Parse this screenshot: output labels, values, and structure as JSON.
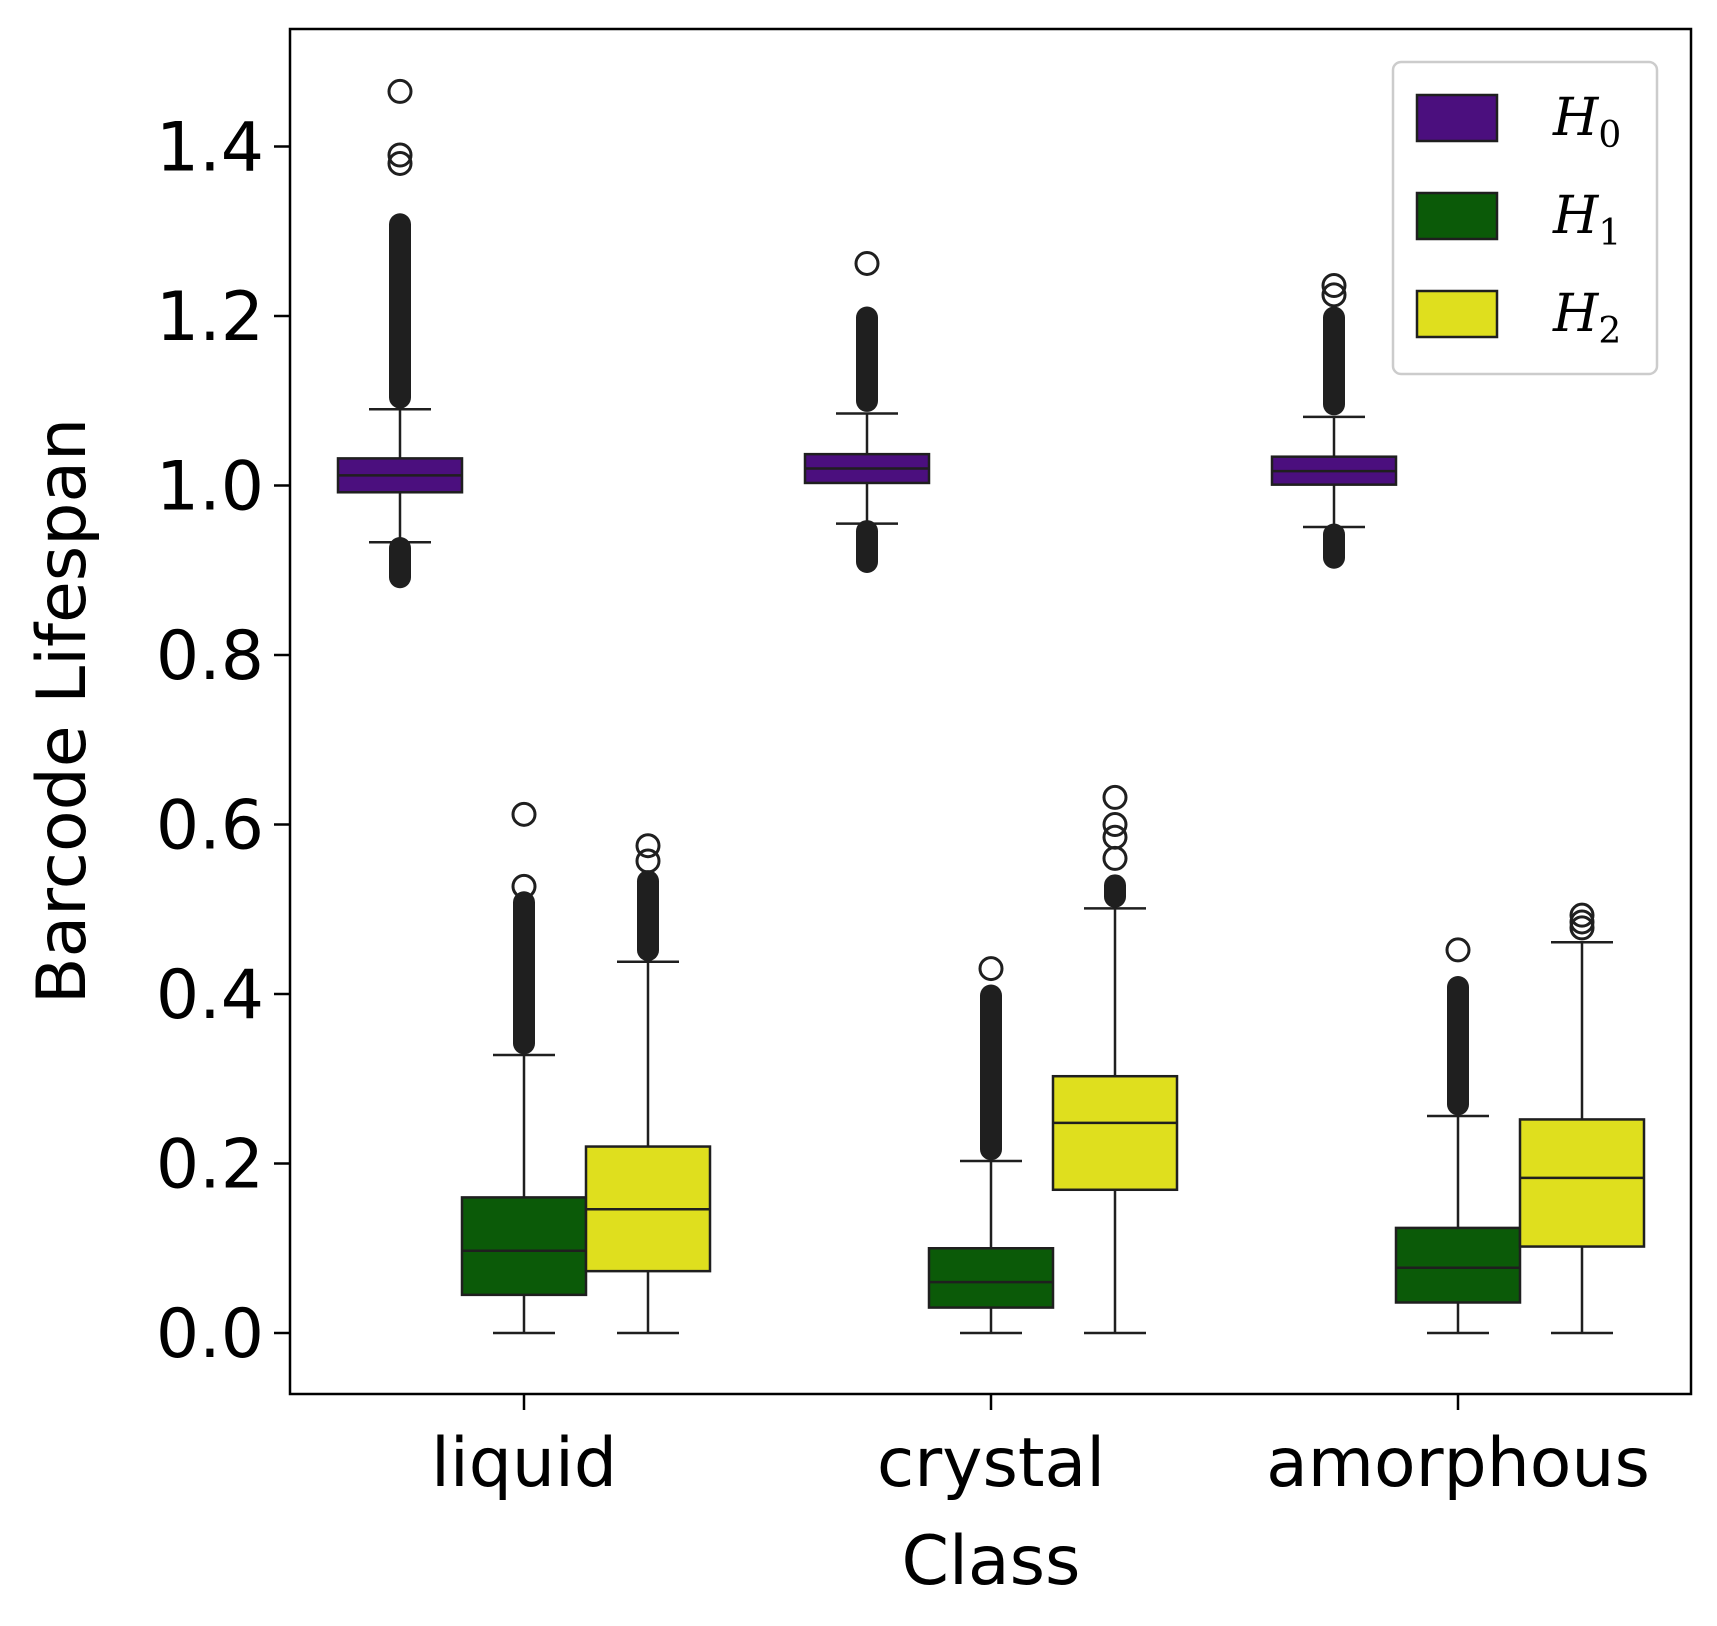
{
  "chart_data": {
    "type": "box",
    "xlabel": "Class",
    "ylabel": "Barcode Lifespan",
    "categories": [
      "liquid",
      "crystal",
      "amorphous"
    ],
    "ylim": [
      -0.072,
      1.54
    ],
    "yticks": [
      "0.0",
      "0.2",
      "0.4",
      "0.6",
      "0.8",
      "1.0",
      "1.2",
      "1.4"
    ],
    "ytick_values": [
      0.0,
      0.2,
      0.4,
      0.6,
      0.8,
      1.0,
      1.2,
      1.4
    ],
    "legend_position": "top-right",
    "grid": false,
    "series": [
      {
        "name": "H",
        "subscript": "0",
        "color": "#4b0f7e",
        "boxes": [
          {
            "category": "liquid",
            "whisker_low": 0.933,
            "q1": 0.992,
            "median": 1.012,
            "q3": 1.032,
            "whisker_high": 1.09,
            "outlier_low": [
              0.88,
              0.938
            ],
            "outlier_high": [
              1.092,
              1.32
            ],
            "outliers_extra": [
              1.38,
              1.39,
              1.465
            ]
          },
          {
            "category": "crystal",
            "whisker_low": 0.955,
            "q1": 1.003,
            "median": 1.02,
            "q3": 1.037,
            "whisker_high": 1.085,
            "outlier_low": [
              0.898,
              0.958
            ],
            "outlier_high": [
              1.088,
              1.21
            ],
            "outliers_extra": [
              1.262
            ]
          },
          {
            "category": "amorphous",
            "whisker_low": 0.951,
            "q1": 1.001,
            "median": 1.017,
            "q3": 1.034,
            "whisker_high": 1.081,
            "outlier_low": [
              0.903,
              0.954
            ],
            "outlier_high": [
              1.084,
              1.21
            ],
            "outliers_extra": [
              1.225,
              1.236
            ]
          }
        ]
      },
      {
        "name": "H",
        "subscript": "1",
        "color": "#0b5a08",
        "boxes": [
          {
            "category": "liquid",
            "whisker_low": 0.0,
            "q1": 0.045,
            "median": 0.097,
            "q3": 0.16,
            "whisker_high": 0.328,
            "outlier_low": null,
            "outlier_high": [
              0.33,
              0.52
            ],
            "outliers_extra": [
              0.527,
              0.612
            ]
          },
          {
            "category": "crystal",
            "whisker_low": 0.0,
            "q1": 0.03,
            "median": 0.06,
            "q3": 0.1,
            "whisker_high": 0.203,
            "outlier_low": null,
            "outlier_high": [
              0.205,
              0.41
            ],
            "outliers_extra": [
              0.43
            ]
          },
          {
            "category": "amorphous",
            "whisker_low": 0.0,
            "q1": 0.036,
            "median": 0.077,
            "q3": 0.124,
            "whisker_high": 0.256,
            "outlier_low": null,
            "outlier_high": [
              0.258,
              0.42
            ],
            "outliers_extra": [
              0.452
            ]
          }
        ]
      },
      {
        "name": "H",
        "subscript": "2",
        "color": "#dfdf1e",
        "boxes": [
          {
            "category": "liquid",
            "whisker_low": 0.0,
            "q1": 0.073,
            "median": 0.146,
            "q3": 0.22,
            "whisker_high": 0.438,
            "outlier_low": null,
            "outlier_high": [
              0.44,
              0.545
            ],
            "outliers_extra": [
              0.557,
              0.575
            ]
          },
          {
            "category": "crystal",
            "whisker_low": 0.0,
            "q1": 0.169,
            "median": 0.248,
            "q3": 0.303,
            "whisker_high": 0.501,
            "outlier_low": null,
            "outlier_high": [
              0.503,
              0.54
            ],
            "outliers_extra": [
              0.56,
              0.585,
              0.6,
              0.632
            ]
          },
          {
            "category": "amorphous",
            "whisker_low": 0.0,
            "q1": 0.102,
            "median": 0.183,
            "q3": 0.252,
            "whisker_high": 0.461,
            "outlier_low": null,
            "outlier_high": null,
            "outliers_extra": [
              0.478,
              0.485,
              0.493
            ]
          }
        ]
      }
    ]
  }
}
